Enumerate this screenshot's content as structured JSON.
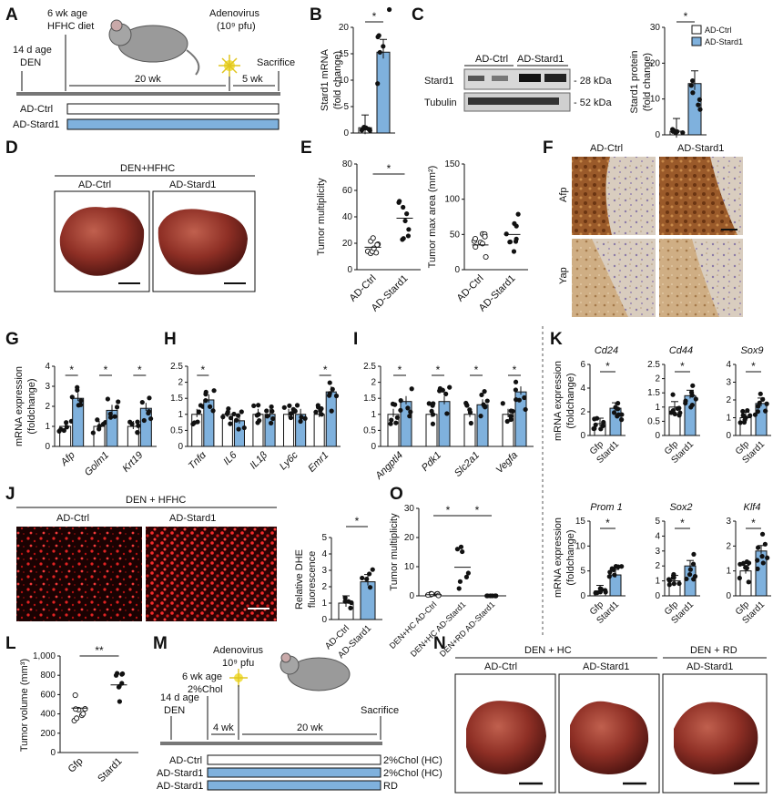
{
  "panel_letters": [
    "A",
    "B",
    "C",
    "D",
    "E",
    "F",
    "G",
    "H",
    "I",
    "J",
    "K",
    "L",
    "M",
    "N",
    "O"
  ],
  "panelA": {
    "age14": "14 d age",
    "den": "DEN",
    "age6": "6 wk age",
    "diet": "HFHC diet",
    "adeno": "Adenovirus",
    "pfu": "(10⁹ pfu)",
    "sacrifice": "Sacrifice",
    "wk20": "20 wk",
    "wk5": "5 wk",
    "groups": [
      "AD-Ctrl",
      "AD-Stard1"
    ]
  },
  "panelB": {
    "ylabel_gene": "Stard1",
    "ylabel_rest": " mRNA",
    "ylabel2": "(fold change)",
    "star": "*"
  },
  "panelC": {
    "lanes": [
      "AD-Ctrl",
      "AD-Stard1"
    ],
    "bands": [
      {
        "name": "Stard1",
        "kda": "- 28 kDa"
      },
      {
        "name": "Tubulin",
        "kda": "- 52 kDa"
      }
    ],
    "ylabel1": "Stard1 protein",
    "ylabel2": "(fold change)",
    "star": "*",
    "legend": [
      "AD-Ctrl",
      "AD-Stard1"
    ]
  },
  "panelD": {
    "title": "DEN+HFHC",
    "groups": [
      "AD-Ctrl",
      "AD-Stard1"
    ]
  },
  "panelE": {
    "ylabel1": "Tumor multiplicity",
    "ylabel2": "Tumor max area (mm²)",
    "groups": [
      "AD-Ctrl",
      "AD-Stard1"
    ],
    "star": "*"
  },
  "panelF": {
    "cols": [
      "AD-Ctrl",
      "AD-Stard1"
    ],
    "rows": [
      "Afp",
      "Yap"
    ]
  },
  "panelG": {
    "ylabel1": "mRNA expression",
    "ylabel2": "(foldchange)"
  },
  "panelJ": {
    "title": "DEN + HFHC",
    "groups": [
      "AD-Ctrl",
      "AD-Stard1"
    ],
    "ylabel1": "Relative DHE",
    "ylabel2": "fluorescence",
    "star": "*"
  },
  "panelK": {
    "ylabel1": "mRNA expression",
    "ylabel2": "(foldchange)",
    "groups": [
      "Gfp",
      "Stard1"
    ]
  },
  "panelL": {
    "ylabel": "Tumor volume (mm³)",
    "groups": [
      "Gfp",
      "Stard1"
    ],
    "star": "**"
  },
  "panelM": {
    "adeno": "Adenovirus",
    "pfu": "10⁹ pfu",
    "age6": "6 wk age",
    "chol": "2%Chol",
    "age14": "14 d age",
    "den": "DEN",
    "wk4": "4 wk",
    "wk20": "20 wk",
    "sacrifice": "Sacrifice",
    "rows": [
      {
        "name": "AD-Ctrl",
        "diet": "2%Chol (HC)"
      },
      {
        "name": "AD-Stard1",
        "diet": "2%Chol (HC)"
      },
      {
        "name": "AD-Stard1",
        "diet": "RD"
      }
    ]
  },
  "panelN": {
    "title1": "DEN + HC",
    "title2": "DEN + RD",
    "labels": [
      "AD-Ctrl",
      "AD-Stard1",
      "AD-Stard1"
    ]
  },
  "panelO": {
    "ylabel": "Tumor multiplicity",
    "groups": [
      "DEN+HC AD-Ctrl",
      "DEN+HC AD-Stard1",
      "DEN+RD AD-Stard1"
    ]
  },
  "chart_data": [
    {
      "id": "B",
      "type": "bar",
      "categories": [
        "AD-Ctrl",
        "AD-Stard1"
      ],
      "values": [
        1,
        15.3
      ],
      "ylim": [
        0,
        20
      ],
      "ticks": [
        0,
        5,
        10,
        15,
        20
      ],
      "ylabel": "Stard1 mRNA (fold change)",
      "significance": "*"
    },
    {
      "id": "C",
      "type": "bar",
      "categories": [
        "AD-Ctrl",
        "AD-Stard1"
      ],
      "values": [
        1,
        14.3
      ],
      "ylim": [
        0,
        30
      ],
      "ticks": [
        0,
        10,
        20,
        30
      ],
      "ylabel": "Stard1 protein (fold change)",
      "significance": "*"
    },
    {
      "id": "E1",
      "type": "scatter",
      "categories": [
        "AD-Ctrl",
        "AD-Stard1"
      ],
      "means": [
        17,
        39
      ],
      "ylim": [
        0,
        80
      ],
      "ticks": [
        0,
        20,
        40,
        60,
        80
      ],
      "ylabel": "Tumor multiplicity",
      "significance": "*"
    },
    {
      "id": "E2",
      "type": "scatter",
      "categories": [
        "AD-Ctrl",
        "AD-Stard1"
      ],
      "means": [
        35,
        50
      ],
      "ylim": [
        0,
        150
      ],
      "ticks": [
        0,
        50,
        100,
        150
      ],
      "ylabel": "Tumor max area (mm²)"
    },
    {
      "id": "G",
      "type": "bar",
      "categories": [
        "Afp",
        "Golm1",
        "Krt19"
      ],
      "series": [
        {
          "values": [
            1,
            1,
            1
          ]
        },
        {
          "values": [
            2.4,
            1.8,
            1.9
          ]
        }
      ],
      "ylim": [
        0,
        4
      ],
      "ticks": [
        0,
        1,
        2,
        3,
        4
      ],
      "significance": [
        "*",
        "*",
        "*"
      ]
    },
    {
      "id": "H",
      "type": "bar",
      "categories": [
        "Tnfα",
        "IL6",
        "IL1β",
        "Ly6c",
        "Emr1"
      ],
      "series": [
        {
          "values": [
            1,
            1,
            1,
            1,
            1
          ]
        },
        {
          "values": [
            1.45,
            0.8,
            1,
            1,
            1.7
          ]
        }
      ],
      "ylim": [
        0,
        2.5
      ],
      "ticks": [
        0,
        0.5,
        1,
        1.5,
        2,
        2.5
      ],
      "significance": [
        "*",
        "",
        "",
        "",
        "*"
      ]
    },
    {
      "id": "I",
      "type": "bar",
      "categories": [
        "Angptl4",
        "Pdk1",
        "Slc2a1",
        "Vegfa"
      ],
      "series": [
        {
          "values": [
            1,
            1,
            1,
            1
          ]
        },
        {
          "values": [
            1.4,
            1.4,
            1.3,
            1.7
          ]
        }
      ],
      "ylim": [
        0,
        2.5
      ],
      "ticks": [
        0,
        0.5,
        1,
        1.5,
        2,
        2.5
      ],
      "significance": [
        "*",
        "*",
        "*",
        "*"
      ]
    },
    {
      "id": "J",
      "type": "bar",
      "categories": [
        "AD-Ctrl",
        "AD-Stard1"
      ],
      "values": [
        1,
        2.3
      ],
      "ylim": [
        0,
        5
      ],
      "ticks": [
        0,
        1,
        2,
        3,
        4,
        5
      ],
      "ylabel": "Relative DHE fluorescence",
      "significance": "*"
    },
    {
      "id": "K1",
      "type": "bar",
      "gene": "Cd24",
      "categories": [
        "Gfp",
        "Stard1"
      ],
      "values": [
        1,
        2.3
      ],
      "ylim": [
        0,
        6
      ],
      "ticks": [
        0,
        2,
        4,
        6
      ],
      "significance": "*"
    },
    {
      "id": "K2",
      "type": "bar",
      "gene": "Cd44",
      "categories": [
        "Gfp",
        "Stard1"
      ],
      "values": [
        1,
        1.4
      ],
      "ylim": [
        0,
        2.5
      ],
      "ticks": [
        0,
        0.5,
        1,
        1.5,
        2,
        2.5
      ],
      "significance": "*"
    },
    {
      "id": "K3",
      "type": "bar",
      "gene": "Sox9",
      "categories": [
        "Gfp",
        "Stard1"
      ],
      "values": [
        1,
        1.8
      ],
      "ylim": [
        0,
        4
      ],
      "ticks": [
        0,
        1,
        2,
        3,
        4
      ],
      "significance": "*"
    },
    {
      "id": "K4",
      "type": "bar",
      "gene": "Prom 1",
      "categories": [
        "Gfp",
        "Stard1"
      ],
      "values": [
        1,
        4.2
      ],
      "ylim": [
        0,
        15
      ],
      "ticks": [
        0,
        5,
        10,
        15
      ],
      "significance": "*"
    },
    {
      "id": "K5",
      "type": "bar",
      "gene": "Sox2",
      "categories": [
        "Gfp",
        "Stard1"
      ],
      "values": [
        1,
        2
      ],
      "ylim": [
        0,
        5
      ],
      "ticks": [
        0,
        1,
        2,
        3,
        4,
        5
      ],
      "significance": "*"
    },
    {
      "id": "K6",
      "type": "bar",
      "gene": "Klf4",
      "categories": [
        "Gfp",
        "Stard1"
      ],
      "values": [
        1,
        1.8
      ],
      "ylim": [
        0,
        3
      ],
      "ticks": [
        0,
        1,
        2,
        3
      ],
      "significance": "*"
    },
    {
      "id": "L",
      "type": "scatter",
      "categories": [
        "Gfp",
        "Stard1"
      ],
      "means": [
        460,
        700
      ],
      "ylim": [
        0,
        1000
      ],
      "ticks": [
        "0",
        "200",
        "400",
        "600",
        "800",
        "1,000"
      ],
      "ylabel": "Tumor volume (mm³)",
      "significance": "**"
    },
    {
      "id": "O",
      "type": "scatter",
      "categories": [
        "DEN+HC AD-Ctrl",
        "DEN+HC AD-Stard1",
        "DEN+RD AD-Stard1"
      ],
      "means": [
        0.4,
        9.8,
        0
      ],
      "ylim": [
        0,
        30
      ],
      "ticks": [
        0,
        10,
        20,
        30
      ],
      "ylabel": "Tumor multiplicity",
      "significance": [
        "*",
        "*"
      ]
    }
  ],
  "colors": {
    "ctrl": "#ffffff",
    "stard1": "#7fb1dd",
    "tissue": "#8e2f25",
    "stain": "#a05d2e",
    "fluor": "#d81e1e"
  }
}
